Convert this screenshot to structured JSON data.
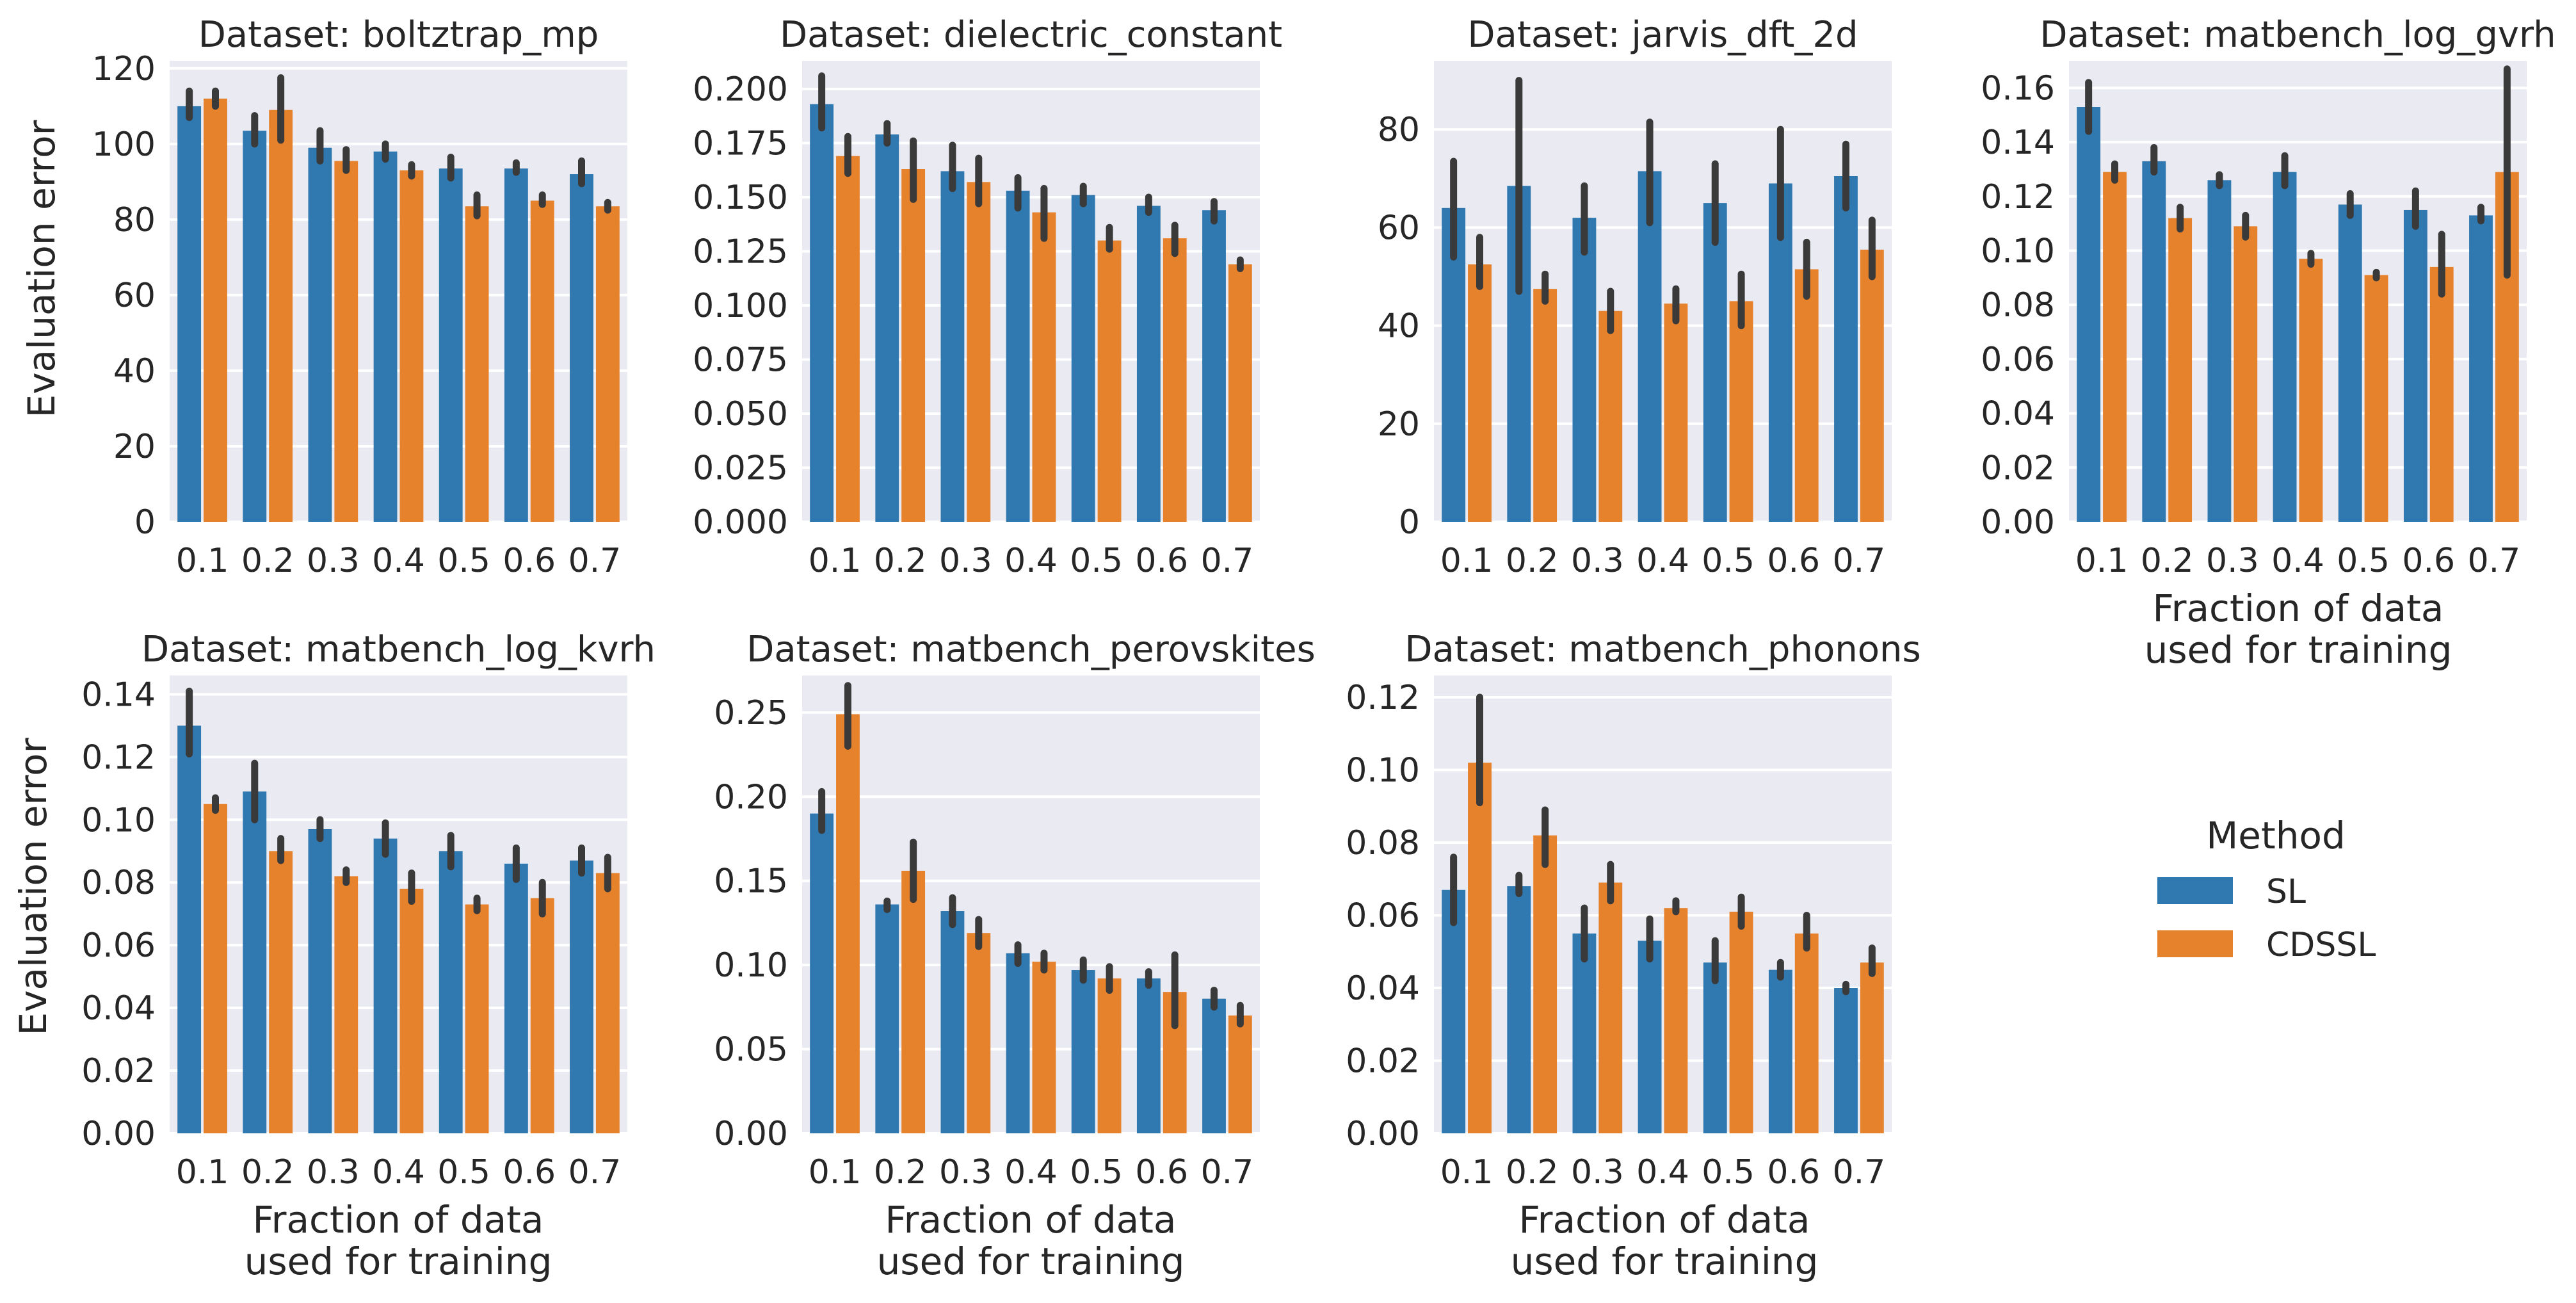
{
  "colors": {
    "background": "#eaeaf2",
    "grid": "#ffffff",
    "SL": "#2f78b0",
    "CDSSL": "#e7822c",
    "errorbar": "#3a3a3a"
  },
  "legend": {
    "title": "Method",
    "items": [
      {
        "label": "SL",
        "color": "#2f78b0"
      },
      {
        "label": "CDSSL",
        "color": "#e7822c"
      }
    ]
  },
  "labels": {
    "ylabel": "Evaluation error",
    "xlabel_line1": "Fraction of data",
    "xlabel_line2": "used for training"
  },
  "chart_data": [
    {
      "type": "bar",
      "title": "Dataset:  boltztrap_mp",
      "categories": [
        "0.1",
        "0.2",
        "0.3",
        "0.4",
        "0.5",
        "0.6",
        "0.7"
      ],
      "ylim": [
        0,
        122
      ],
      "yticks": [
        0,
        20,
        40,
        60,
        80,
        100,
        120
      ],
      "ytick_labels": [
        "0",
        "20",
        "40",
        "60",
        "80",
        "100",
        "120"
      ],
      "series": [
        {
          "name": "SL",
          "values": [
            110,
            103.5,
            99,
            98,
            93.5,
            93.5,
            92
          ],
          "errors": [
            [
              107,
              114
            ],
            [
              100,
              107.5
            ],
            [
              95.5,
              103.5
            ],
            [
              96,
              100
            ],
            [
              91,
              96.5
            ],
            [
              92.5,
              95
            ],
            [
              89.5,
              95.5
            ]
          ]
        },
        {
          "name": "CDSSL",
          "values": [
            112,
            109,
            95.5,
            93,
            83.5,
            85,
            83.5
          ],
          "errors": [
            [
              110,
              114
            ],
            [
              101,
              117.5
            ],
            [
              93,
              98.5
            ],
            [
              91.5,
              94.5
            ],
            [
              81,
              86.5
            ],
            [
              84,
              86.5
            ],
            [
              82.5,
              84.5
            ]
          ]
        }
      ]
    },
    {
      "type": "bar",
      "title": "Dataset:  dielectric_constant",
      "categories": [
        "0.1",
        "0.2",
        "0.3",
        "0.4",
        "0.5",
        "0.6",
        "0.7"
      ],
      "ylim": [
        0,
        0.213
      ],
      "yticks": [
        0,
        0.025,
        0.05,
        0.075,
        0.1,
        0.125,
        0.15,
        0.175,
        0.2
      ],
      "ytick_labels": [
        "0.000",
        "0.025",
        "0.050",
        "0.075",
        "0.100",
        "0.125",
        "0.150",
        "0.175",
        "0.200"
      ],
      "series": [
        {
          "name": "SL",
          "values": [
            0.193,
            0.179,
            0.162,
            0.153,
            0.151,
            0.146,
            0.144
          ],
          "errors": [
            [
              0.182,
              0.206
            ],
            [
              0.175,
              0.184
            ],
            [
              0.154,
              0.174
            ],
            [
              0.145,
              0.159
            ],
            [
              0.147,
              0.155
            ],
            [
              0.143,
              0.15
            ],
            [
              0.139,
              0.148
            ]
          ]
        },
        {
          "name": "CDSSL",
          "values": [
            0.169,
            0.163,
            0.157,
            0.143,
            0.13,
            0.131,
            0.119
          ],
          "errors": [
            [
              0.161,
              0.178
            ],
            [
              0.149,
              0.176
            ],
            [
              0.147,
              0.168
            ],
            [
              0.131,
              0.154
            ],
            [
              0.126,
              0.136
            ],
            [
              0.124,
              0.137
            ],
            [
              0.117,
              0.121
            ]
          ]
        }
      ]
    },
    {
      "type": "bar",
      "title": "Dataset:  jarvis_dft_2d",
      "categories": [
        "0.1",
        "0.2",
        "0.3",
        "0.4",
        "0.5",
        "0.6",
        "0.7"
      ],
      "ylim": [
        0,
        94
      ],
      "yticks": [
        0,
        20,
        40,
        60,
        80
      ],
      "ytick_labels": [
        "0",
        "20",
        "40",
        "60",
        "80"
      ],
      "series": [
        {
          "name": "SL",
          "values": [
            64,
            68.5,
            62,
            71.5,
            65,
            69,
            70.5
          ],
          "errors": [
            [
              54,
              73.5
            ],
            [
              47,
              90
            ],
            [
              55,
              68.5
            ],
            [
              61,
              81.5
            ],
            [
              57,
              73
            ],
            [
              58,
              80
            ],
            [
              64,
              77
            ]
          ]
        },
        {
          "name": "CDSSL",
          "values": [
            52.5,
            47.5,
            43,
            44.5,
            45,
            51.5,
            55.5
          ],
          "errors": [
            [
              48,
              58
            ],
            [
              45,
              50.5
            ],
            [
              39,
              47
            ],
            [
              41,
              47.5
            ],
            [
              40,
              50.5
            ],
            [
              46,
              57
            ],
            [
              50,
              61.5
            ]
          ]
        }
      ]
    },
    {
      "type": "bar",
      "title": "Dataset:  matbench_log_gvrh",
      "categories": [
        "0.1",
        "0.2",
        "0.3",
        "0.4",
        "0.5",
        "0.6",
        "0.7"
      ],
      "ylim": [
        0,
        0.17
      ],
      "yticks": [
        0,
        0.02,
        0.04,
        0.06,
        0.08,
        0.1,
        0.12,
        0.14,
        0.16
      ],
      "ytick_labels": [
        "0.00",
        "0.02",
        "0.04",
        "0.06",
        "0.08",
        "0.10",
        "0.12",
        "0.14",
        "0.16"
      ],
      "series": [
        {
          "name": "SL",
          "values": [
            0.153,
            0.133,
            0.126,
            0.129,
            0.117,
            0.115,
            0.113
          ],
          "errors": [
            [
              0.144,
              0.162
            ],
            [
              0.129,
              0.138
            ],
            [
              0.124,
              0.128
            ],
            [
              0.124,
              0.135
            ],
            [
              0.113,
              0.121
            ],
            [
              0.109,
              0.122
            ],
            [
              0.111,
              0.116
            ]
          ]
        },
        {
          "name": "CDSSL",
          "values": [
            0.129,
            0.112,
            0.109,
            0.097,
            0.091,
            0.094,
            0.129
          ],
          "errors": [
            [
              0.126,
              0.132
            ],
            [
              0.108,
              0.116
            ],
            [
              0.105,
              0.113
            ],
            [
              0.095,
              0.099
            ],
            [
              0.09,
              0.092
            ],
            [
              0.084,
              0.106
            ],
            [
              0.091,
              0.167
            ]
          ]
        }
      ]
    },
    {
      "type": "bar",
      "title": "Dataset:  matbench_log_kvrh",
      "categories": [
        "0.1",
        "0.2",
        "0.3",
        "0.4",
        "0.5",
        "0.6",
        "0.7"
      ],
      "ylim": [
        0,
        0.146
      ],
      "yticks": [
        0,
        0.02,
        0.04,
        0.06,
        0.08,
        0.1,
        0.12,
        0.14
      ],
      "ytick_labels": [
        "0.00",
        "0.02",
        "0.04",
        "0.06",
        "0.08",
        "0.10",
        "0.12",
        "0.14"
      ],
      "series": [
        {
          "name": "SL",
          "values": [
            0.13,
            0.109,
            0.097,
            0.094,
            0.09,
            0.086,
            0.087
          ],
          "errors": [
            [
              0.121,
              0.141
            ],
            [
              0.1,
              0.118
            ],
            [
              0.094,
              0.1
            ],
            [
              0.089,
              0.099
            ],
            [
              0.085,
              0.095
            ],
            [
              0.081,
              0.091
            ],
            [
              0.083,
              0.091
            ]
          ]
        },
        {
          "name": "CDSSL",
          "values": [
            0.105,
            0.09,
            0.082,
            0.078,
            0.073,
            0.075,
            0.083
          ],
          "errors": [
            [
              0.103,
              0.107
            ],
            [
              0.087,
              0.094
            ],
            [
              0.08,
              0.084
            ],
            [
              0.074,
              0.083
            ],
            [
              0.071,
              0.075
            ],
            [
              0.07,
              0.08
            ],
            [
              0.078,
              0.088
            ]
          ]
        }
      ]
    },
    {
      "type": "bar",
      "title": "Dataset:  matbench_perovskites",
      "categories": [
        "0.1",
        "0.2",
        "0.3",
        "0.4",
        "0.5",
        "0.6",
        "0.7"
      ],
      "ylim": [
        0,
        0.272
      ],
      "yticks": [
        0,
        0.05,
        0.1,
        0.15,
        0.2,
        0.25
      ],
      "ytick_labels": [
        "0.00",
        "0.05",
        "0.10",
        "0.15",
        "0.20",
        "0.25"
      ],
      "series": [
        {
          "name": "SL",
          "values": [
            0.19,
            0.136,
            0.132,
            0.107,
            0.097,
            0.092,
            0.08
          ],
          "errors": [
            [
              0.18,
              0.203
            ],
            [
              0.133,
              0.138
            ],
            [
              0.124,
              0.14
            ],
            [
              0.101,
              0.112
            ],
            [
              0.091,
              0.103
            ],
            [
              0.088,
              0.096
            ],
            [
              0.075,
              0.085
            ]
          ]
        },
        {
          "name": "CDSSL",
          "values": [
            0.249,
            0.156,
            0.119,
            0.102,
            0.092,
            0.084,
            0.07
          ],
          "errors": [
            [
              0.23,
              0.266
            ],
            [
              0.139,
              0.173
            ],
            [
              0.111,
              0.127
            ],
            [
              0.097,
              0.107
            ],
            [
              0.085,
              0.099
            ],
            [
              0.064,
              0.106
            ],
            [
              0.065,
              0.076
            ]
          ]
        }
      ]
    },
    {
      "type": "bar",
      "title": "Dataset:  matbench_phonons",
      "categories": [
        "0.1",
        "0.2",
        "0.3",
        "0.4",
        "0.5",
        "0.6",
        "0.7"
      ],
      "ylim": [
        0,
        0.126
      ],
      "yticks": [
        0,
        0.02,
        0.04,
        0.06,
        0.08,
        0.1,
        0.12
      ],
      "ytick_labels": [
        "0.00",
        "0.02",
        "0.04",
        "0.06",
        "0.08",
        "0.10",
        "0.12"
      ],
      "series": [
        {
          "name": "SL",
          "values": [
            0.067,
            0.068,
            0.055,
            0.053,
            0.047,
            0.045,
            0.04
          ],
          "errors": [
            [
              0.058,
              0.076
            ],
            [
              0.066,
              0.071
            ],
            [
              0.048,
              0.062
            ],
            [
              0.048,
              0.059
            ],
            [
              0.042,
              0.053
            ],
            [
              0.043,
              0.047
            ],
            [
              0.039,
              0.041
            ]
          ]
        },
        {
          "name": "CDSSL",
          "values": [
            0.102,
            0.082,
            0.069,
            0.062,
            0.061,
            0.055,
            0.047
          ],
          "errors": [
            [
              0.091,
              0.12
            ],
            [
              0.074,
              0.089
            ],
            [
              0.064,
              0.074
            ],
            [
              0.061,
              0.064
            ],
            [
              0.057,
              0.065
            ],
            [
              0.051,
              0.06
            ],
            [
              0.044,
              0.051
            ]
          ]
        }
      ]
    }
  ]
}
